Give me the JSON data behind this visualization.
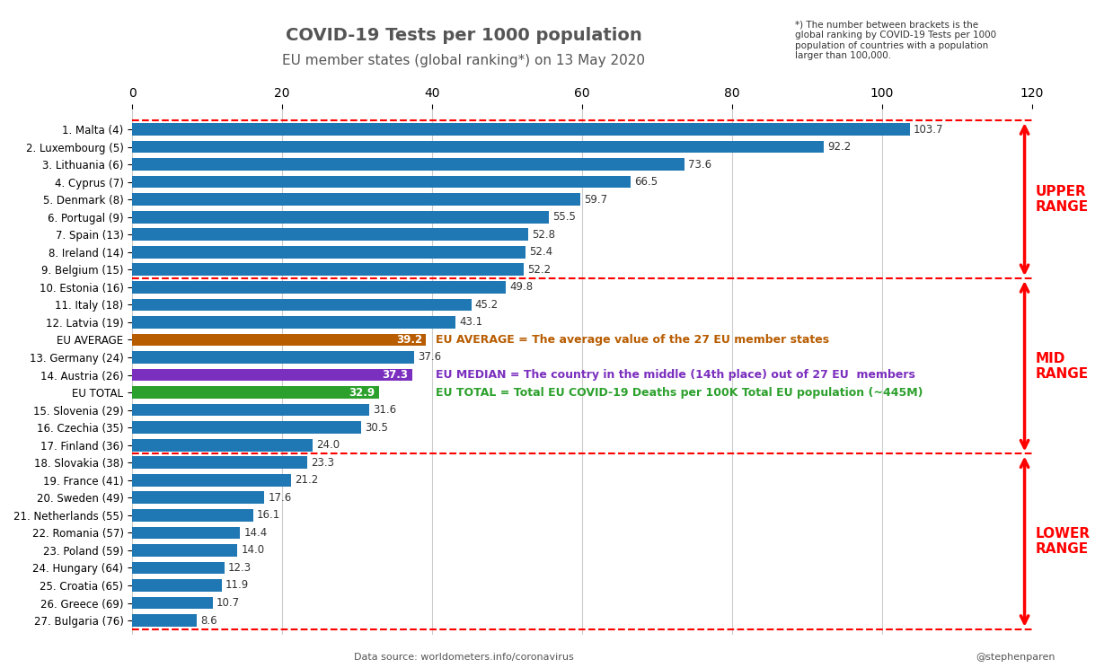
{
  "title": "COVID-19 Tests per 1000 population",
  "subtitle": "EU member states (global ranking*) on 13 May 2020",
  "footnote": "*) The number between brackets is the\nglobal ranking by COVID-19 Tests per 1000\npopulation of countries with a population\nlarger than 100,000.",
  "datasource": "Data source: worldometers.info/coronavirus",
  "credit": "@stephenparen",
  "categories": [
    "1. Malta (4)",
    "2. Luxembourg (5)",
    "3. Lithuania (6)",
    "4. Cyprus (7)",
    "5. Denmark (8)",
    "6. Portugal (9)",
    "7. Spain (13)",
    "8. Ireland (14)",
    "9. Belgium (15)",
    "10. Estonia (16)",
    "11. Italy (18)",
    "12. Latvia (19)",
    "EU AVERAGE",
    "13. Germany (24)",
    "14. Austria (26)",
    "EU TOTAL",
    "15. Slovenia (29)",
    "16. Czechia (35)",
    "17. Finland (36)",
    "18. Slovakia (38)",
    "19. France (41)",
    "20. Sweden (49)",
    "21. Netherlands (55)",
    "22. Romania (57)",
    "23. Poland (59)",
    "24. Hungary (64)",
    "25. Croatia (65)",
    "26. Greece (69)",
    "27. Bulgaria (76)"
  ],
  "values": [
    103.7,
    92.2,
    73.6,
    66.5,
    59.7,
    55.5,
    52.8,
    52.4,
    52.2,
    49.8,
    45.2,
    43.1,
    39.2,
    37.6,
    37.3,
    32.9,
    31.6,
    30.5,
    24.0,
    23.3,
    21.2,
    17.6,
    16.1,
    14.4,
    14.0,
    12.3,
    11.9,
    10.7,
    8.6
  ],
  "bar_colors": [
    "#1f77b4",
    "#1f77b4",
    "#1f77b4",
    "#1f77b4",
    "#1f77b4",
    "#1f77b4",
    "#1f77b4",
    "#1f77b4",
    "#1f77b4",
    "#1f77b4",
    "#1f77b4",
    "#1f77b4",
    "#b85c00",
    "#1f77b4",
    "#7b2fbe",
    "#2ca02c",
    "#1f77b4",
    "#1f77b4",
    "#1f77b4",
    "#1f77b4",
    "#1f77b4",
    "#1f77b4",
    "#1f77b4",
    "#1f77b4",
    "#1f77b4",
    "#1f77b4",
    "#1f77b4",
    "#1f77b4",
    "#1f77b4"
  ],
  "label_colors": [
    "black",
    "black",
    "black",
    "black",
    "black",
    "black",
    "black",
    "black",
    "black",
    "black",
    "black",
    "black",
    "white",
    "black",
    "white",
    "white",
    "black",
    "black",
    "black",
    "black",
    "black",
    "black",
    "black",
    "black",
    "black",
    "black",
    "black",
    "black",
    "black"
  ],
  "upper_range_rows": [
    0,
    8
  ],
  "mid_range_rows": [
    9,
    18
  ],
  "lower_range_rows": [
    19,
    28
  ],
  "dashed_line_after": [
    8,
    18,
    19
  ],
  "xlim": [
    0,
    120
  ],
  "xticks": [
    0.0,
    20.0,
    40.0,
    60.0,
    80.0,
    100.0,
    120.0
  ],
  "bar_color_blue": "#1777c4",
  "bar_color_orange": "#b85c00",
  "bar_color_purple": "#7b2fbe",
  "bar_color_green": "#2ca02c",
  "eu_average_text": "EU AVERAGE = The average value of the 27 EU member states",
  "eu_median_text": "EU MEDIAN = The country in the middle (14th place) out of 27 EU  members",
  "eu_total_text": "EU TOTAL = Total EU COVID-19 Deaths per 100K Total EU population (~445M)",
  "upper_range_label": "UPPER\nRANGE",
  "mid_range_label": "MID\nRANGE",
  "lower_range_label": "LOWER\nRANGE"
}
